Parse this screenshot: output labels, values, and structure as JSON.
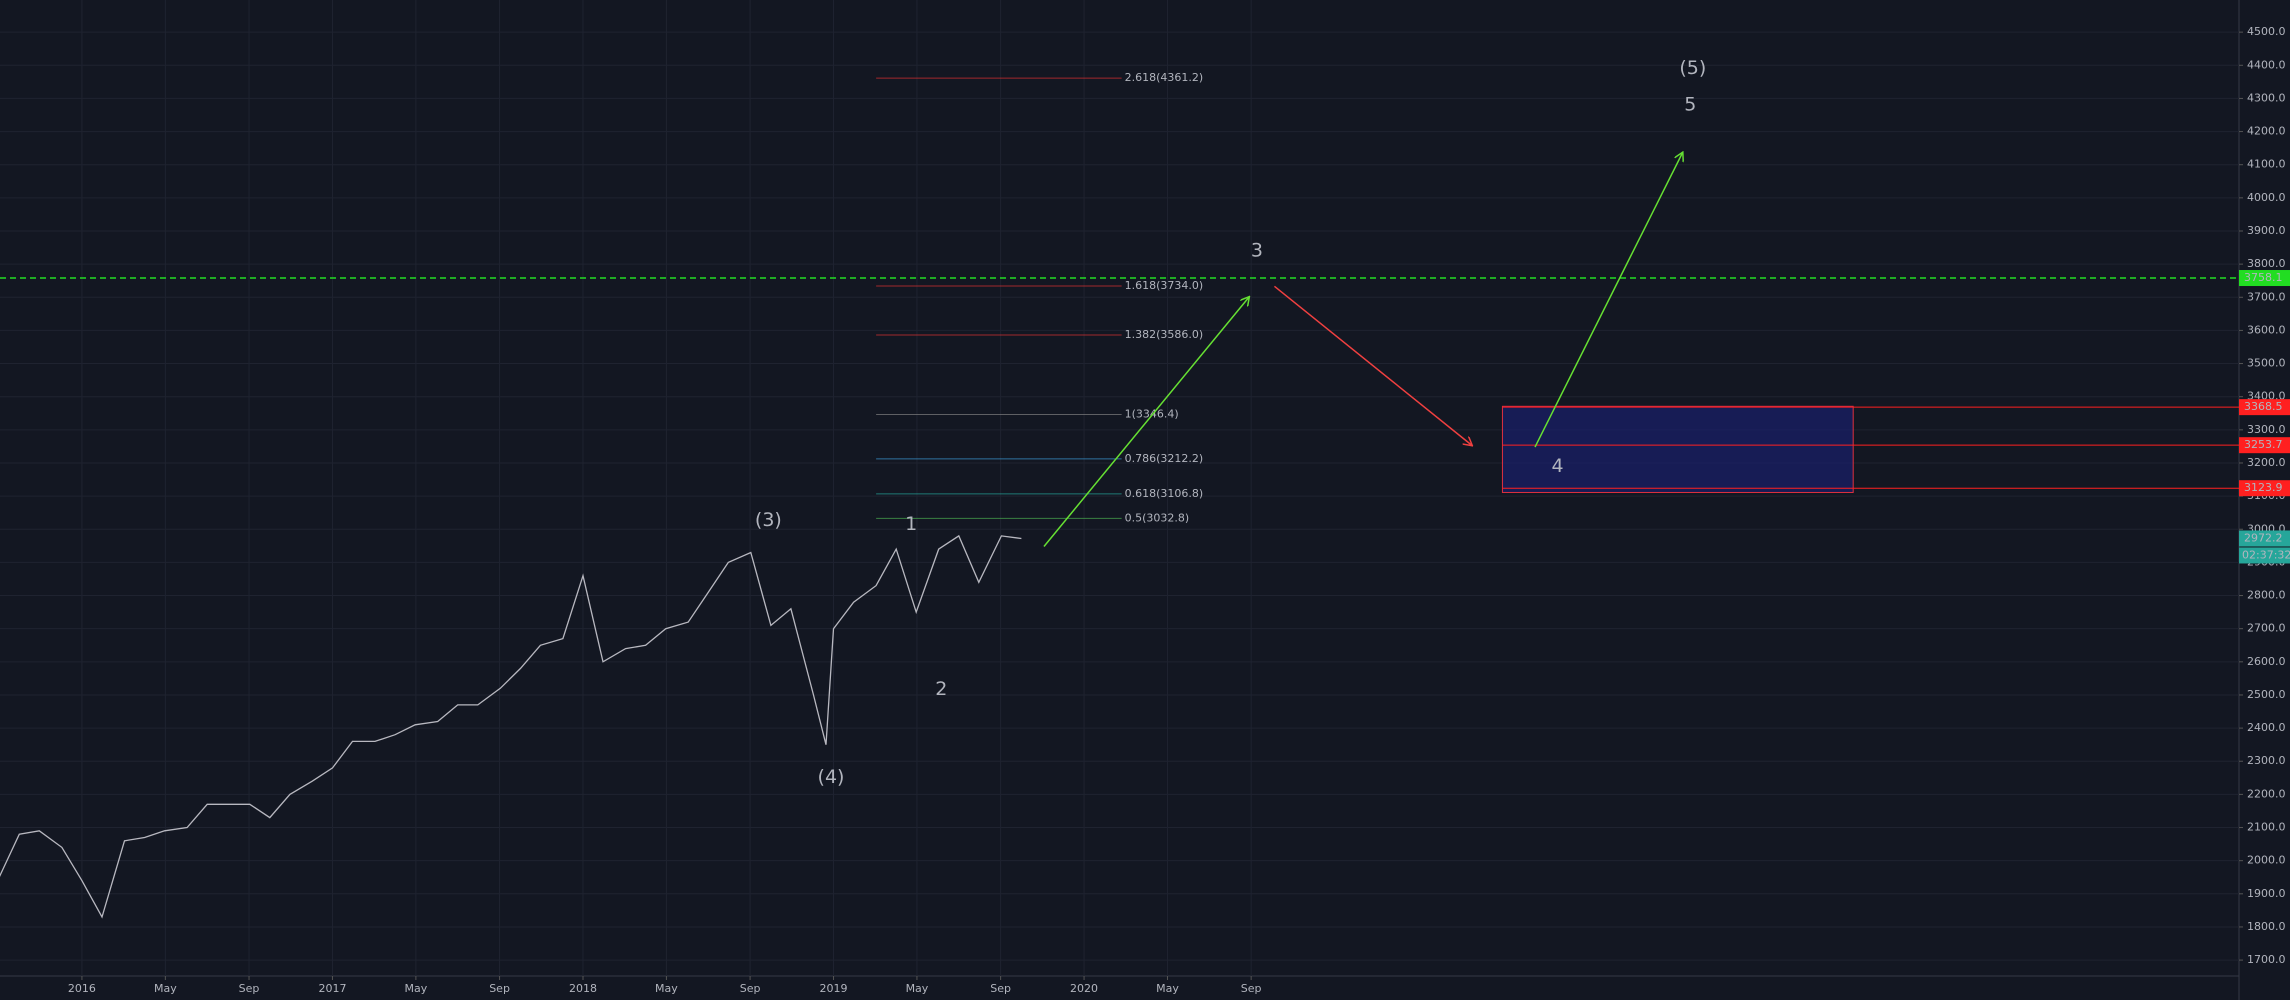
{
  "chart_data": {
    "type": "line",
    "background": "#131722",
    "grid": true,
    "xlim": [
      2015.673,
      2024.61
    ],
    "ylim": [
      1652,
      4597
    ],
    "xticks": [
      {
        "value": 2016,
        "label": "2016"
      },
      {
        "value": 2016.333,
        "label": "May"
      },
      {
        "value": 2016.667,
        "label": "Sep"
      },
      {
        "value": 2017,
        "label": "2017"
      },
      {
        "value": 2017.333,
        "label": "May"
      },
      {
        "value": 2017.667,
        "label": "Sep"
      },
      {
        "value": 2018,
        "label": "2018"
      },
      {
        "value": 2018.333,
        "label": "May"
      },
      {
        "value": 2018.667,
        "label": "Sep"
      },
      {
        "value": 2019,
        "label": "2019"
      },
      {
        "value": 2019.333,
        "label": "May"
      },
      {
        "value": 2019.667,
        "label": "Sep"
      },
      {
        "value": 2020,
        "label": "2020"
      },
      {
        "value": 2020.333,
        "label": "May"
      },
      {
        "value": 2020.667,
        "label": "Sep"
      }
    ],
    "yticks": [
      {
        "value": 1700,
        "label": "1700.0"
      },
      {
        "value": 1800,
        "label": "1800.0"
      },
      {
        "value": 1900,
        "label": "1900.0"
      },
      {
        "value": 2000,
        "label": "2000.0"
      },
      {
        "value": 2100,
        "label": "2100.0"
      },
      {
        "value": 2200,
        "label": "2200.0"
      },
      {
        "value": 2300,
        "label": "2300.0"
      },
      {
        "value": 2400,
        "label": "2400.0"
      },
      {
        "value": 2500,
        "label": "2500.0"
      },
      {
        "value": 2600,
        "label": "2600.0"
      },
      {
        "value": 2700,
        "label": "2700.0"
      },
      {
        "value": 2800,
        "label": "2800.0"
      },
      {
        "value": 2900,
        "label": "2900.0"
      },
      {
        "value": 3000,
        "label": "3000.0"
      },
      {
        "value": 3100,
        "label": "3100.0"
      },
      {
        "value": 3200,
        "label": "3200.0"
      },
      {
        "value": 3300,
        "label": "3300.0"
      },
      {
        "value": 3400,
        "label": "3400.0"
      },
      {
        "value": 3500,
        "label": "3500.0"
      },
      {
        "value": 3600,
        "label": "3600.0"
      },
      {
        "value": 3700,
        "label": "3700.0"
      },
      {
        "value": 3800,
        "label": "3800.0"
      },
      {
        "value": 3900,
        "label": "3900.0"
      },
      {
        "value": 4000,
        "label": "4000.0"
      },
      {
        "value": 4100,
        "label": "4100.0"
      },
      {
        "value": 4200,
        "label": "4200.0"
      },
      {
        "value": 4300,
        "label": "4300.0"
      },
      {
        "value": 4400,
        "label": "4400.0"
      },
      {
        "value": 4500,
        "label": "4500.0"
      }
    ],
    "series": [
      {
        "color": "#b8b8c0",
        "x": [
          2015.67,
          2015.75,
          2015.83,
          2015.92,
          2016.0,
          2016.08,
          2016.17,
          2016.25,
          2016.33,
          2016.42,
          2016.5,
          2016.58,
          2016.67,
          2016.75,
          2016.83,
          2016.92,
          2017.0,
          2017.08,
          2017.17,
          2017.25,
          2017.33,
          2017.42,
          2017.5,
          2017.58,
          2017.67,
          2017.75,
          2017.83,
          2017.92,
          2018.0,
          2018.08,
          2018.17,
          2018.25,
          2018.33,
          2018.42,
          2018.5,
          2018.58,
          2018.67,
          2018.75,
          2018.83,
          2018.92,
          2018.97,
          2019.0,
          2019.08,
          2019.17,
          2019.25,
          2019.33,
          2019.42,
          2019.5,
          2019.58,
          2019.67,
          2019.75
        ],
        "values": [
          1950,
          2080,
          2090,
          2040,
          1940,
          1830,
          2060,
          2070,
          2090,
          2100,
          2170,
          2170,
          2170,
          2130,
          2200,
          2240,
          2280,
          2360,
          2360,
          2380,
          2410,
          2420,
          2470,
          2470,
          2520,
          2580,
          2650,
          2670,
          2860,
          2600,
          2640,
          2650,
          2700,
          2720,
          2810,
          2900,
          2930,
          2710,
          2760,
          2500,
          2350,
          2700,
          2780,
          2830,
          2940,
          2750,
          2940,
          2980,
          2840,
          2980,
          2972
        ]
      }
    ],
    "fib_x": [
      2019.17,
      2020.15
    ],
    "fib_levels": [
      {
        "value": 4361.2,
        "label": "2.618(4361.2)",
        "color": "#e03030"
      },
      {
        "value": 3734.0,
        "label": "1.618(3734.0)",
        "color": "#e03030"
      },
      {
        "value": 3586.0,
        "label": "1.382(3586.0)",
        "color": "#e03030"
      },
      {
        "value": 3346.4,
        "label": "1(3346.4)",
        "color": "#808080"
      },
      {
        "value": 3212.2,
        "label": "0.786(3212.2)",
        "color": "#3d9bd6"
      },
      {
        "value": 3106.8,
        "label": "0.618(3106.8)",
        "color": "#26a69a"
      },
      {
        "value": 3032.8,
        "label": "0.5(3032.8)",
        "color": "#4caf50"
      }
    ],
    "levels": [
      {
        "value": 3758.1,
        "color": "#22dd22",
        "dashed": true,
        "x_start": 2015.673
      },
      {
        "value": 3368.5,
        "color": "#ff2020",
        "dashed": false,
        "x_start": 2021.67
      },
      {
        "value": 3253.7,
        "color": "#ff2020",
        "dashed": false,
        "x_start": 2021.67
      },
      {
        "value": 3123.9,
        "color": "#ff2020",
        "dashed": false,
        "x_start": 2021.67
      }
    ],
    "last_price": {
      "value": 2972.2,
      "color": "#26a69a"
    },
    "countdown": "02:37:32",
    "box": {
      "x": [
        2021.67,
        2023.07
      ],
      "y": [
        3111,
        3371
      ],
      "color": "#e03040",
      "fill": "#1a1f6b"
    },
    "arrows": [
      {
        "x1": 2019.84,
        "y1": 2948,
        "x2": 2020.66,
        "y2": 3702,
        "color": "#66e033"
      },
      {
        "x1": 2020.76,
        "y1": 3733,
        "x2": 2021.55,
        "y2": 3252,
        "color": "#f04040"
      },
      {
        "x1": 2021.8,
        "y1": 3248,
        "x2": 2022.39,
        "y2": 4138,
        "color": "#66e033"
      }
    ],
    "annotations": [
      {
        "text": "(5)",
        "x": 2022.43,
        "y": 4390
      },
      {
        "text": "5",
        "x": 2022.42,
        "y": 4280
      },
      {
        "text": "3",
        "x": 2020.69,
        "y": 3839
      },
      {
        "text": "4",
        "x": 2021.89,
        "y": 3190
      },
      {
        "text": "(3)",
        "x": 2018.74,
        "y": 3027
      },
      {
        "text": "1",
        "x": 2019.31,
        "y": 3014
      },
      {
        "text": "2",
        "x": 2019.43,
        "y": 2516
      },
      {
        "text": "(4)",
        "x": 2018.99,
        "y": 2251
      }
    ],
    "annotation_color": "#7ee33a"
  }
}
